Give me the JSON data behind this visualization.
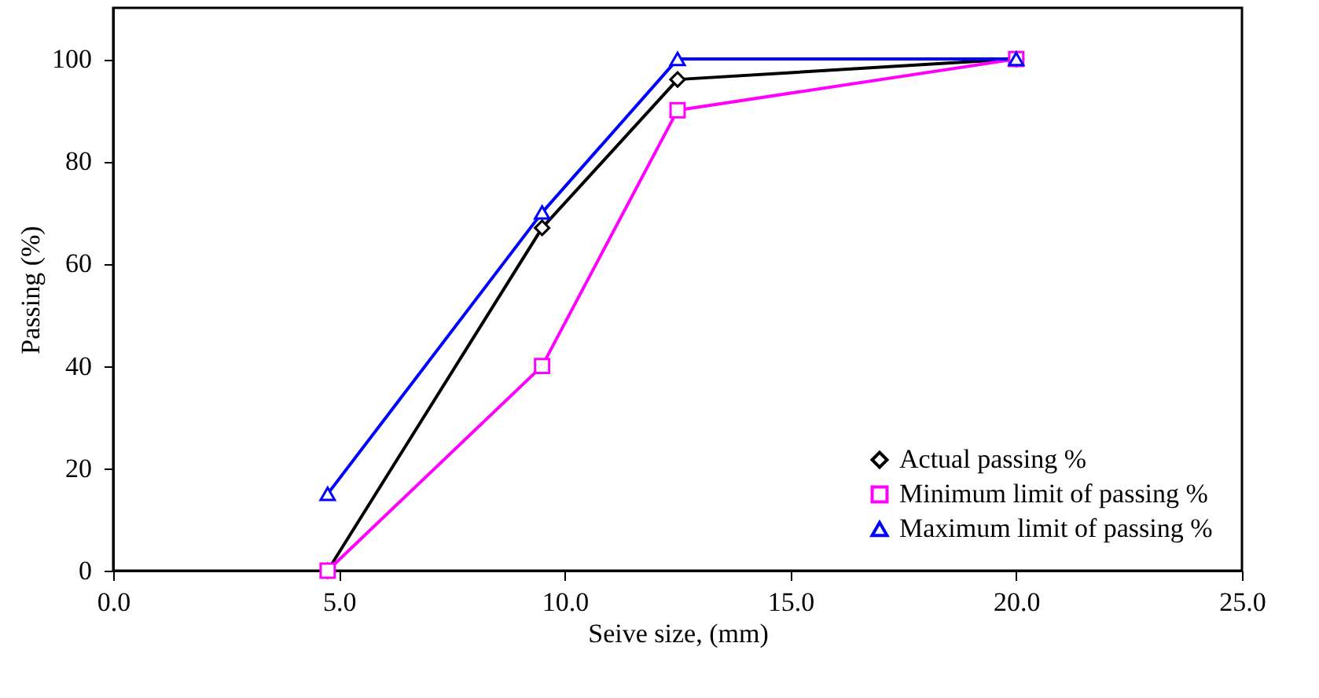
{
  "chart_data": {
    "type": "line",
    "xlabel": "Seive size, (mm)",
    "ylabel": "Passing (%)",
    "xlim": [
      0,
      25
    ],
    "xticks": [
      {
        "value": 0,
        "label": "0.0"
      },
      {
        "value": 5,
        "label": "5.0"
      },
      {
        "value": 10,
        "label": "10.0"
      },
      {
        "value": 15,
        "label": "15.0"
      },
      {
        "value": 20,
        "label": "20.0"
      },
      {
        "value": 25,
        "label": "25.0"
      }
    ],
    "ylim": [
      0,
      110
    ],
    "yticks": [
      0,
      20,
      40,
      60,
      80,
      100
    ],
    "grid": false,
    "legend": "bottom right",
    "line_style": "solid",
    "series": [
      {
        "name": "Actual passing %",
        "color": "#000000",
        "marker": "diamond",
        "x": [
          4.75,
          9.5,
          12.5,
          20
        ],
        "values": [
          0,
          67,
          96,
          100
        ]
      },
      {
        "name": "Minimum limit of passing %",
        "color": "#ff00ff",
        "marker": "square",
        "x": [
          4.75,
          9.5,
          12.5,
          20
        ],
        "values": [
          0,
          40,
          90,
          100
        ]
      },
      {
        "name": "Maximum limit of passing %",
        "color": "#0000ff",
        "marker": "triangle",
        "x": [
          4.75,
          9.5,
          12.5,
          20
        ],
        "values": [
          15,
          70,
          100,
          100
        ]
      }
    ]
  }
}
